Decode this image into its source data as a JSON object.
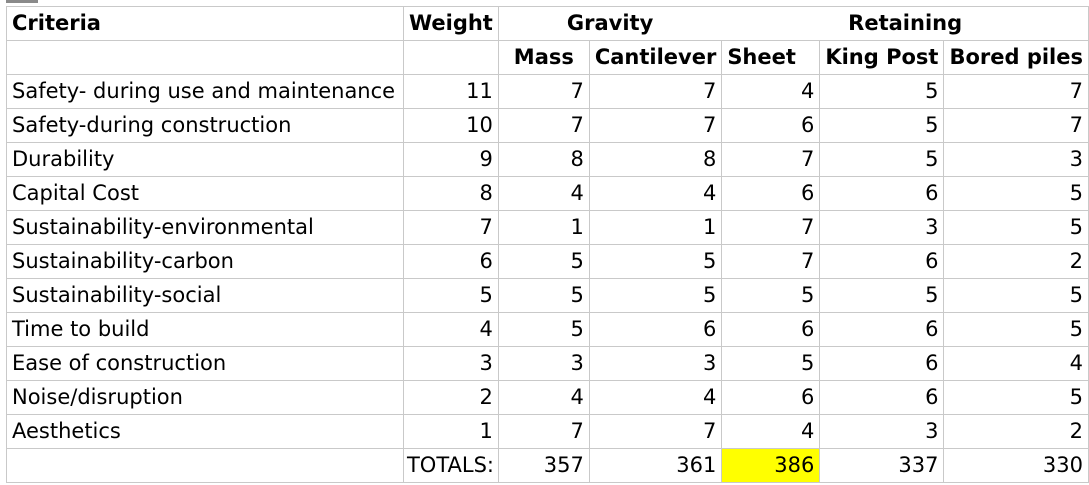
{
  "columns": {
    "criteria": "Criteria",
    "weight": "Weight",
    "group_gravity": "Gravity",
    "group_retaining": "Retaining",
    "mass": "Mass",
    "cantilever": "Cantilever",
    "sheet": "Sheet",
    "king_post": "King Post",
    "bored_piles": "Bored piles"
  },
  "rows": [
    {
      "criteria": "Safety- during use and maintenance",
      "weight": "11",
      "mass": "7",
      "cantilever": "7",
      "sheet": "4",
      "king_post": "5",
      "bored_piles": "7"
    },
    {
      "criteria": "Safety-during construction",
      "weight": "10",
      "mass": "7",
      "cantilever": "7",
      "sheet": "6",
      "king_post": "5",
      "bored_piles": "7"
    },
    {
      "criteria": "Durability",
      "weight": "9",
      "mass": "8",
      "cantilever": "8",
      "sheet": "7",
      "king_post": "5",
      "bored_piles": "3"
    },
    {
      "criteria": "Capital Cost",
      "weight": "8",
      "mass": "4",
      "cantilever": "4",
      "sheet": "6",
      "king_post": "6",
      "bored_piles": "5"
    },
    {
      "criteria": "Sustainability-environmental",
      "weight": "7",
      "mass": "1",
      "cantilever": "1",
      "sheet": "7",
      "king_post": "3",
      "bored_piles": "5"
    },
    {
      "criteria": "Sustainability-carbon",
      "weight": "6",
      "mass": "5",
      "cantilever": "5",
      "sheet": "7",
      "king_post": "6",
      "bored_piles": "2"
    },
    {
      "criteria": "Sustainability-social",
      "weight": "5",
      "mass": "5",
      "cantilever": "5",
      "sheet": "5",
      "king_post": "5",
      "bored_piles": "5"
    },
    {
      "criteria": "Time to build",
      "weight": "4",
      "mass": "5",
      "cantilever": "6",
      "sheet": "6",
      "king_post": "6",
      "bored_piles": "5"
    },
    {
      "criteria": "Ease of construction",
      "weight": "3",
      "mass": "3",
      "cantilever": "3",
      "sheet": "5",
      "king_post": "6",
      "bored_piles": "4"
    },
    {
      "criteria": "Noise/disruption",
      "weight": "2",
      "mass": "4",
      "cantilever": "4",
      "sheet": "6",
      "king_post": "6",
      "bored_piles": "5"
    },
    {
      "criteria": "Aesthetics",
      "weight": "1",
      "mass": "7",
      "cantilever": "7",
      "sheet": "4",
      "king_post": "3",
      "bored_piles": "2"
    }
  ],
  "totals": {
    "label": "TOTALS:",
    "mass": "357",
    "cantilever": "361",
    "sheet": "386",
    "king_post": "337",
    "bored_piles": "330"
  },
  "highlight_color": "#ffff00"
}
